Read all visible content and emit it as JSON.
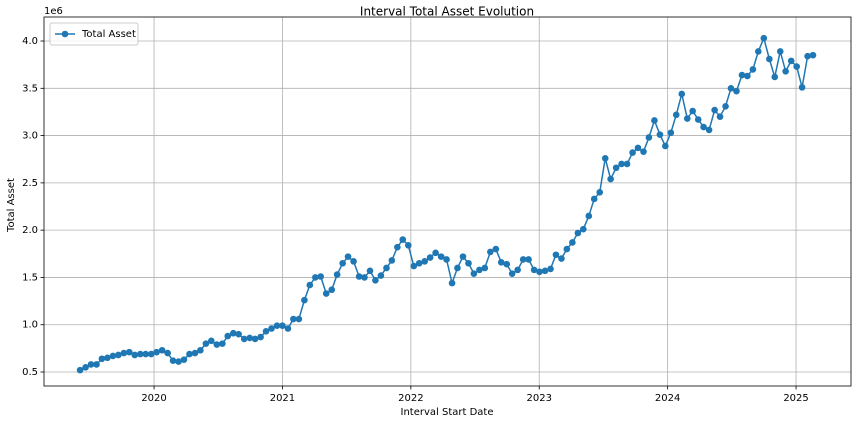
{
  "chart_data": {
    "type": "line",
    "title": "Interval Total Asset Evolution",
    "xlabel": "Interval Start Date",
    "ylabel": "Total Asset",
    "y_offset_label": "1e6",
    "x": [
      2019.424,
      2019.467,
      2019.509,
      2019.552,
      2019.594,
      2019.637,
      2019.68,
      2019.722,
      2019.765,
      2019.807,
      2019.85,
      2019.893,
      2019.935,
      2019.978,
      2020.02,
      2020.063,
      2020.106,
      2020.148,
      2020.191,
      2020.233,
      2020.276,
      2020.319,
      2020.361,
      2020.404,
      2020.446,
      2020.489,
      2020.532,
      2020.574,
      2020.617,
      2020.659,
      2020.702,
      2020.745,
      2020.787,
      2020.83,
      2020.872,
      2020.915,
      2020.958,
      2021.0,
      2021.043,
      2021.085,
      2021.128,
      2021.171,
      2021.213,
      2021.256,
      2021.298,
      2021.341,
      2021.384,
      2021.426,
      2021.469,
      2021.511,
      2021.554,
      2021.597,
      2021.639,
      2021.682,
      2021.724,
      2021.767,
      2021.81,
      2021.852,
      2021.895,
      2021.937,
      2021.98,
      2022.023,
      2022.065,
      2022.108,
      2022.15,
      2022.193,
      2022.236,
      2022.278,
      2022.321,
      2022.363,
      2022.406,
      2022.449,
      2022.491,
      2022.534,
      2022.576,
      2022.619,
      2022.662,
      2022.704,
      2022.747,
      2022.789,
      2022.832,
      2022.875,
      2022.917,
      2022.96,
      2023.002,
      2023.045,
      2023.088,
      2023.13,
      2023.173,
      2023.215,
      2023.258,
      2023.301,
      2023.343,
      2023.386,
      2023.428,
      2023.471,
      2023.514,
      2023.556,
      2023.599,
      2023.641,
      2023.684,
      2023.727,
      2023.769,
      2023.812,
      2023.854,
      2023.897,
      2023.94,
      2023.982,
      2024.025,
      2024.067,
      2024.11,
      2024.153,
      2024.195,
      2024.238,
      2024.28,
      2024.323,
      2024.366,
      2024.408,
      2024.451,
      2024.493,
      2024.536,
      2024.579,
      2024.621,
      2024.664,
      2024.706,
      2024.749,
      2024.792,
      2024.834,
      2024.877,
      2024.919,
      2024.962,
      2025.005,
      2025.047,
      2025.09,
      2025.132
    ],
    "series": [
      {
        "name": "Total Asset",
        "color": "#1f77b4",
        "values": [
          520000,
          550000,
          580000,
          580000,
          640000,
          650000,
          670000,
          680000,
          700000,
          710000,
          680000,
          690000,
          690000,
          690000,
          710000,
          730000,
          700000,
          620000,
          610000,
          630000,
          690000,
          700000,
          730000,
          800000,
          830000,
          790000,
          800000,
          880000,
          910000,
          900000,
          850000,
          860000,
          850000,
          870000,
          930000,
          960000,
          990000,
          990000,
          960000,
          1060000,
          1060000,
          1260000,
          1420000,
          1500000,
          1510000,
          1330000,
          1370000,
          1530000,
          1650000,
          1720000,
          1670000,
          1510000,
          1500000,
          1570000,
          1470000,
          1520000,
          1600000,
          1680000,
          1820000,
          1900000,
          1840000,
          1620000,
          1650000,
          1670000,
          1710000,
          1760000,
          1720000,
          1690000,
          1440000,
          1600000,
          1720000,
          1650000,
          1540000,
          1580000,
          1600000,
          1770000,
          1800000,
          1660000,
          1640000,
          1540000,
          1580000,
          1690000,
          1690000,
          1580000,
          1560000,
          1570000,
          1590000,
          1740000,
          1700000,
          1800000,
          1870000,
          1970000,
          2010000,
          2150000,
          2330000,
          2400000,
          2760000,
          2540000,
          2660000,
          2700000,
          2700000,
          2820000,
          2870000,
          2830000,
          2980000,
          3160000,
          3010000,
          2890000,
          3030000,
          3220000,
          3440000,
          3180000,
          3260000,
          3170000,
          3090000,
          3060000,
          3270000,
          3200000,
          3310000,
          3500000,
          3470000,
          3640000,
          3630000,
          3700000,
          3890000,
          4030000,
          3810000,
          3620000,
          3890000,
          3680000,
          3790000,
          3730000,
          3510000,
          3840000,
          3850000
        ]
      }
    ],
    "xlim": [
      2019.143,
      2025.428
    ],
    "xticks": [
      2020,
      2021,
      2022,
      2023,
      2024,
      2025
    ],
    "ylim": [
      352000,
      4254000
    ],
    "yticks": [
      {
        "value": 500000,
        "label": "0.5"
      },
      {
        "value": 1000000,
        "label": "1.0"
      },
      {
        "value": 1500000,
        "label": "1.5"
      },
      {
        "value": 2000000,
        "label": "2.0"
      },
      {
        "value": 2500000,
        "label": "2.5"
      },
      {
        "value": 3000000,
        "label": "3.0"
      },
      {
        "value": 3500000,
        "label": "3.5"
      },
      {
        "value": 4000000,
        "label": "4.0"
      }
    ],
    "grid": true,
    "legend": "upper-left"
  }
}
